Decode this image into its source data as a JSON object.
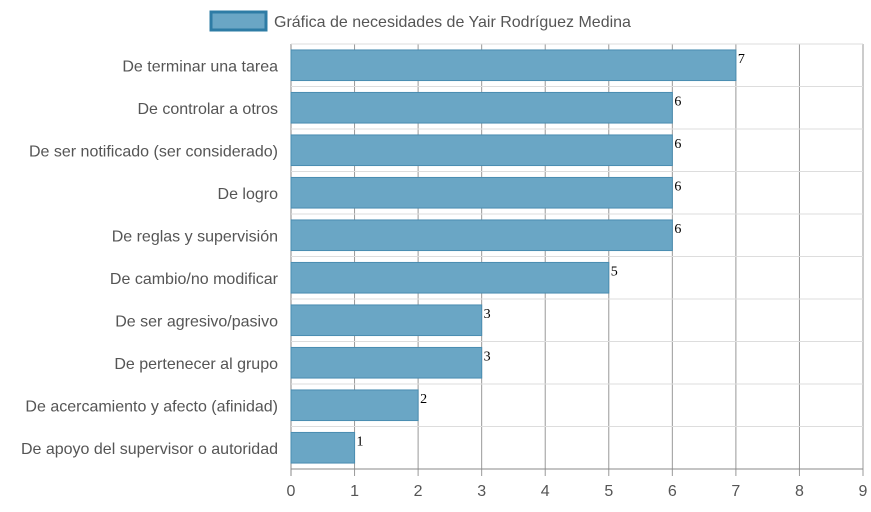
{
  "chart_data": {
    "type": "bar",
    "orientation": "horizontal",
    "categories": [
      "De terminar una tarea",
      "De controlar a otros",
      "De ser notificado (ser considerado)",
      "De logro",
      "De reglas y supervisión",
      "De cambio/no modificar",
      "De ser agresivo/pasivo",
      "De pertenecer al grupo",
      "De acercamiento y afecto (afinidad)",
      "De apoyo del supervisor o autoridad"
    ],
    "series": [
      {
        "name": "Gráfica de necesidades de Yair Rodríguez Medina",
        "values": [
          7,
          6,
          6,
          6,
          6,
          5,
          3,
          3,
          2,
          1
        ]
      }
    ],
    "xlim": [
      0,
      9
    ],
    "xticks": [
      0,
      1,
      2,
      3,
      4,
      5,
      6,
      7,
      8,
      9
    ],
    "grid": true,
    "legend": "top-center",
    "data_labels": true,
    "colors": {
      "bar_fill": "#6aa6c5",
      "bar_stroke": "#4a8db1",
      "legend_swatch_fill": "#6aa6c5",
      "legend_swatch_stroke": "#2e7ca5",
      "grid_major": "#999999",
      "grid_minor": "#dddddd"
    }
  }
}
